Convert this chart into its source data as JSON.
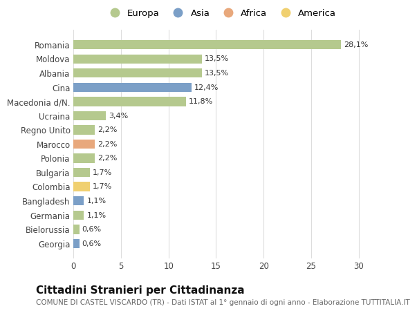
{
  "categories": [
    "Romania",
    "Moldova",
    "Albania",
    "Cina",
    "Macedonia d/N.",
    "Ucraina",
    "Regno Unito",
    "Marocco",
    "Polonia",
    "Bulgaria",
    "Colombia",
    "Bangladesh",
    "Germania",
    "Bielorussia",
    "Georgia"
  ],
  "values": [
    28.1,
    13.5,
    13.5,
    12.4,
    11.8,
    3.4,
    2.2,
    2.2,
    2.2,
    1.7,
    1.7,
    1.1,
    1.1,
    0.6,
    0.6
  ],
  "labels": [
    "28,1%",
    "13,5%",
    "13,5%",
    "12,4%",
    "11,8%",
    "3,4%",
    "2,2%",
    "2,2%",
    "2,2%",
    "1,7%",
    "1,7%",
    "1,1%",
    "1,1%",
    "0,6%",
    "0,6%"
  ],
  "continents": [
    "Europa",
    "Europa",
    "Europa",
    "Asia",
    "Europa",
    "Europa",
    "Europa",
    "Africa",
    "Europa",
    "Europa",
    "America",
    "Asia",
    "Europa",
    "Europa",
    "Asia"
  ],
  "continent_colors": {
    "Europa": "#b5c98e",
    "Asia": "#7b9fc7",
    "Africa": "#e8a87c",
    "America": "#f0d070"
  },
  "legend_order": [
    "Europa",
    "Asia",
    "Africa",
    "America"
  ],
  "title": "Cittadini Stranieri per Cittadinanza",
  "subtitle": "COMUNE DI CASTEL VISCARDO (TR) - Dati ISTAT al 1° gennaio di ogni anno - Elaborazione TUTTITALIA.IT",
  "xlim": [
    0,
    31
  ],
  "xticks": [
    0,
    5,
    10,
    15,
    20,
    25,
    30
  ],
  "background_color": "#ffffff",
  "grid_color": "#dddddd",
  "bar_height": 0.65,
  "title_fontsize": 11,
  "subtitle_fontsize": 7.5,
  "label_fontsize": 8,
  "tick_fontsize": 8.5,
  "legend_fontsize": 9.5
}
